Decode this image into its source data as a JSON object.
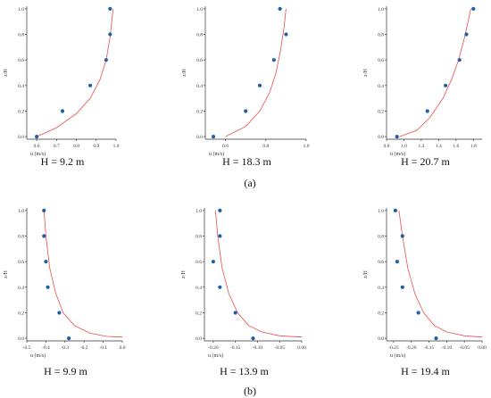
{
  "panel_labels": [
    "(a)",
    "(b)"
  ],
  "chart_data": [
    {
      "type": "scatter",
      "caption": "H = 9.2 m",
      "xlabel": "u (m/s)",
      "ylabel": "z/H",
      "xlim": [
        0.55,
        1.0
      ],
      "ylim": [
        -0.02,
        1.02
      ],
      "xticks": [
        0.6,
        0.7,
        0.8,
        0.9,
        1.0
      ],
      "xtick_labels": [
        "0.6",
        "0.7",
        "0.8",
        "0.9",
        "1.0"
      ],
      "yticks": [
        0,
        0.2,
        0.4,
        0.6,
        0.8,
        1.0
      ],
      "ytick_labels": [
        "0.0",
        "0.2",
        "0.4",
        "0.6",
        "0.8",
        "1.0"
      ],
      "points": [
        [
          0.6,
          0.0
        ],
        [
          0.73,
          0.2
        ],
        [
          0.87,
          0.4
        ],
        [
          0.95,
          0.6
        ],
        [
          0.97,
          0.8
        ],
        [
          0.97,
          1.0
        ]
      ],
      "curve": [
        [
          0.6,
          0.0
        ],
        [
          0.7,
          0.07
        ],
        [
          0.8,
          0.18
        ],
        [
          0.87,
          0.3
        ],
        [
          0.92,
          0.45
        ],
        [
          0.95,
          0.6
        ],
        [
          0.97,
          0.78
        ],
        [
          0.985,
          1.0
        ]
      ],
      "colors": {
        "points": "#1f5fa8",
        "curve": "#e8504a"
      }
    },
    {
      "type": "scatter",
      "caption": "H = 18.3 m",
      "xlabel": "u (m/s)",
      "ylabel": "z/H",
      "xlim": [
        0.5,
        1.0
      ],
      "ylim": [
        -0.02,
        1.02
      ],
      "xticks": [
        0.6,
        0.8,
        1.0
      ],
      "xtick_labels": [
        "0.6",
        "0.8",
        "1.0"
      ],
      "yticks": [
        0,
        0.2,
        0.4,
        0.6,
        0.8,
        1.0
      ],
      "ytick_labels": [
        "0.0",
        "0.2",
        "0.4",
        "0.6",
        "0.8",
        "1.0"
      ],
      "points": [
        [
          0.54,
          0.0
        ],
        [
          0.7,
          0.2
        ],
        [
          0.77,
          0.4
        ],
        [
          0.84,
          0.6
        ],
        [
          0.9,
          0.8
        ],
        [
          0.87,
          1.0
        ]
      ],
      "curve": [
        [
          0.6,
          0.0
        ],
        [
          0.7,
          0.08
        ],
        [
          0.77,
          0.2
        ],
        [
          0.82,
          0.35
        ],
        [
          0.85,
          0.5
        ],
        [
          0.87,
          0.65
        ],
        [
          0.89,
          0.85
        ],
        [
          0.9,
          1.0
        ]
      ],
      "colors": {
        "points": "#1f5fa8",
        "curve": "#e8504a"
      }
    },
    {
      "type": "scatter",
      "caption": "H = 20.7 m",
      "xlabel": "u (m/s)",
      "ylabel": "z/H",
      "xlim": [
        0.8,
        1.9
      ],
      "ylim": [
        -0.02,
        1.02
      ],
      "xticks": [
        0.8,
        1.0,
        1.2,
        1.4,
        1.6,
        1.8
      ],
      "xtick_labels": [
        "0.8",
        "1.0",
        "1.2",
        "1.4",
        "1.6",
        "1.8"
      ],
      "yticks": [
        0,
        0.2,
        0.4,
        0.6,
        0.8,
        1.0
      ],
      "ytick_labels": [
        "0.0",
        "0.2",
        "0.4",
        "0.6",
        "0.8",
        "1.0"
      ],
      "points": [
        [
          0.92,
          0.0
        ],
        [
          1.27,
          0.2
        ],
        [
          1.48,
          0.4
        ],
        [
          1.64,
          0.6
        ],
        [
          1.72,
          0.8
        ],
        [
          1.8,
          1.0
        ]
      ],
      "curve": [
        [
          0.95,
          0.0
        ],
        [
          1.15,
          0.05
        ],
        [
          1.3,
          0.15
        ],
        [
          1.45,
          0.3
        ],
        [
          1.55,
          0.45
        ],
        [
          1.63,
          0.6
        ],
        [
          1.7,
          0.78
        ],
        [
          1.77,
          1.0
        ]
      ],
      "colors": {
        "points": "#1f5fa8",
        "curve": "#e8504a"
      }
    },
    {
      "type": "scatter",
      "caption": "H = 9.9 m",
      "xlabel": "u (m/s)",
      "ylabel": "z/H",
      "xlim": [
        -0.5,
        0.0
      ],
      "ylim": [
        -0.02,
        1.02
      ],
      "xticks": [
        -0.5,
        -0.4,
        -0.3,
        -0.2,
        -0.1,
        0.0
      ],
      "xtick_labels": [
        "-0.5",
        "-0.4",
        "-0.3",
        "-0.2",
        "-0.1",
        "0.0"
      ],
      "yticks": [
        0,
        0.2,
        0.4,
        0.6,
        0.8,
        1.0
      ],
      "ytick_labels": [
        "0.0",
        "0.2",
        "0.4",
        "0.6",
        "0.8",
        "1.0"
      ],
      "points": [
        [
          -0.28,
          0.0
        ],
        [
          -0.33,
          0.2
        ],
        [
          -0.39,
          0.4
        ],
        [
          -0.4,
          0.6
        ],
        [
          -0.41,
          0.8
        ],
        [
          -0.41,
          1.0
        ]
      ],
      "curve": [
        [
          -0.41,
          1.0
        ],
        [
          -0.4,
          0.8
        ],
        [
          -0.38,
          0.55
        ],
        [
          -0.35,
          0.36
        ],
        [
          -0.31,
          0.2
        ],
        [
          -0.25,
          0.1
        ],
        [
          -0.17,
          0.04
        ],
        [
          -0.08,
          0.015
        ],
        [
          0.0,
          0.01
        ]
      ],
      "colors": {
        "points": "#1f5fa8",
        "curve": "#e8504a"
      }
    },
    {
      "type": "scatter",
      "caption": "H = 13.9 m",
      "xlabel": "u (m/s)",
      "ylabel": "z/H",
      "xlim": [
        -0.22,
        0.0
      ],
      "ylim": [
        -0.02,
        1.02
      ],
      "xticks": [
        -0.2,
        -0.15,
        -0.1,
        -0.05,
        0.0
      ],
      "xtick_labels": [
        "-0.20",
        "-0.15",
        "-0.10",
        "-0.05",
        "0.00"
      ],
      "yticks": [
        0,
        0.2,
        0.4,
        0.6,
        0.8,
        1.0
      ],
      "ytick_labels": [
        "0.0",
        "0.2",
        "0.4",
        "0.6",
        "0.8",
        "1.0"
      ],
      "points": [
        [
          -0.11,
          0.0
        ],
        [
          -0.15,
          0.2
        ],
        [
          -0.185,
          0.4
        ],
        [
          -0.2,
          0.6
        ],
        [
          -0.185,
          0.8
        ],
        [
          -0.185,
          1.0
        ]
      ],
      "curve": [
        [
          -0.195,
          1.0
        ],
        [
          -0.19,
          0.8
        ],
        [
          -0.18,
          0.55
        ],
        [
          -0.165,
          0.35
        ],
        [
          -0.145,
          0.2
        ],
        [
          -0.12,
          0.1
        ],
        [
          -0.09,
          0.05
        ],
        [
          -0.05,
          0.02
        ],
        [
          0.0,
          0.01
        ]
      ],
      "colors": {
        "points": "#1f5fa8",
        "curve": "#e8504a"
      }
    },
    {
      "type": "scatter",
      "caption": "H = 19.4 m",
      "xlabel": "u (m/s)",
      "ylabel": "z/H",
      "xlim": [
        -0.27,
        0.0
      ],
      "ylim": [
        -0.02,
        1.02
      ],
      "xticks": [
        -0.25,
        -0.2,
        -0.15,
        -0.1,
        -0.05,
        0.0
      ],
      "xtick_labels": [
        "-0.25",
        "-0.20",
        "-0.15",
        "-0.10",
        "-0.05",
        "0.00"
      ],
      "yticks": [
        0,
        0.2,
        0.4,
        0.6,
        0.8,
        1.0
      ],
      "ytick_labels": [
        "0.0",
        "0.2",
        "0.4",
        "0.6",
        "0.8",
        "1.0"
      ],
      "points": [
        [
          -0.13,
          0.0
        ],
        [
          -0.18,
          0.2
        ],
        [
          -0.225,
          0.4
        ],
        [
          -0.24,
          0.6
        ],
        [
          -0.225,
          0.8
        ],
        [
          -0.245,
          1.0
        ]
      ],
      "curve": [
        [
          -0.235,
          1.0
        ],
        [
          -0.225,
          0.8
        ],
        [
          -0.21,
          0.55
        ],
        [
          -0.19,
          0.35
        ],
        [
          -0.165,
          0.2
        ],
        [
          -0.135,
          0.1
        ],
        [
          -0.1,
          0.05
        ],
        [
          -0.05,
          0.02
        ],
        [
          0.0,
          0.01
        ]
      ],
      "colors": {
        "points": "#1f5fa8",
        "curve": "#e8504a"
      }
    }
  ]
}
